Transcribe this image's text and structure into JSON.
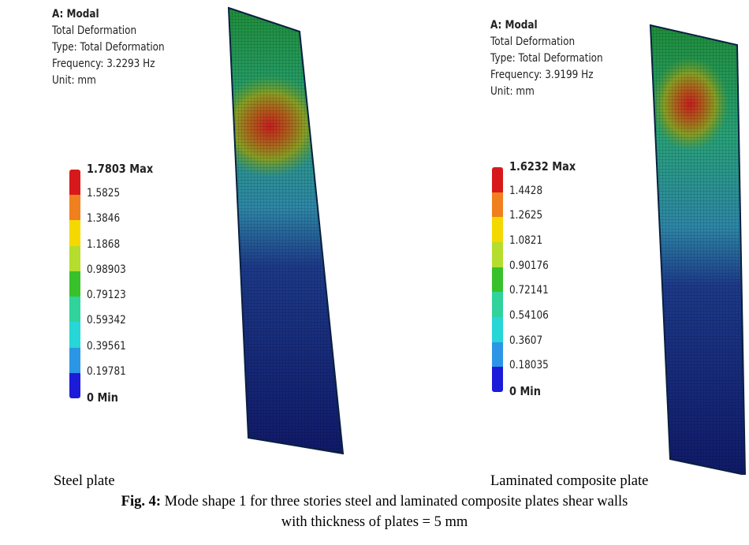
{
  "panels": [
    {
      "title": "A: Modal",
      "result": "Total Deformation",
      "type": "Type: Total Deformation",
      "frequency": "Frequency: 3.2293 Hz",
      "unit": "Unit: mm",
      "legend": [
        "1.7803 Max",
        "1.5825",
        "1.3846",
        "1.1868",
        "0.98903",
        "0.79123",
        "0.59342",
        "0.39561",
        "0.19781",
        "0 Min"
      ],
      "label": "Steel plate"
    },
    {
      "title": "A: Modal",
      "result": "Total Deformation",
      "type": "Type: Total Deformation",
      "frequency": "Frequency: 3.9199 Hz",
      "unit": "Unit: mm",
      "legend": [
        "1.6232 Max",
        "1.4428",
        "1.2625",
        "1.0821",
        "0.90176",
        "0.72141",
        "0.54106",
        "0.3607",
        "0.18035",
        "0 Min"
      ],
      "label": "Laminated composite plate"
    }
  ],
  "legend_colors": [
    "#d7191c",
    "#f07f1e",
    "#f5d800",
    "#b5dd2d",
    "#39c12b",
    "#2fd39b",
    "#27d6d6",
    "#2b96e5",
    "#1b1bd9"
  ],
  "caption": {
    "fig_label": "Fig. 4:",
    "text_line1": " Mode shape 1 for three stories steel and laminated composite plates shear walls",
    "text_line2": "with thickness of plates = 5 mm"
  }
}
